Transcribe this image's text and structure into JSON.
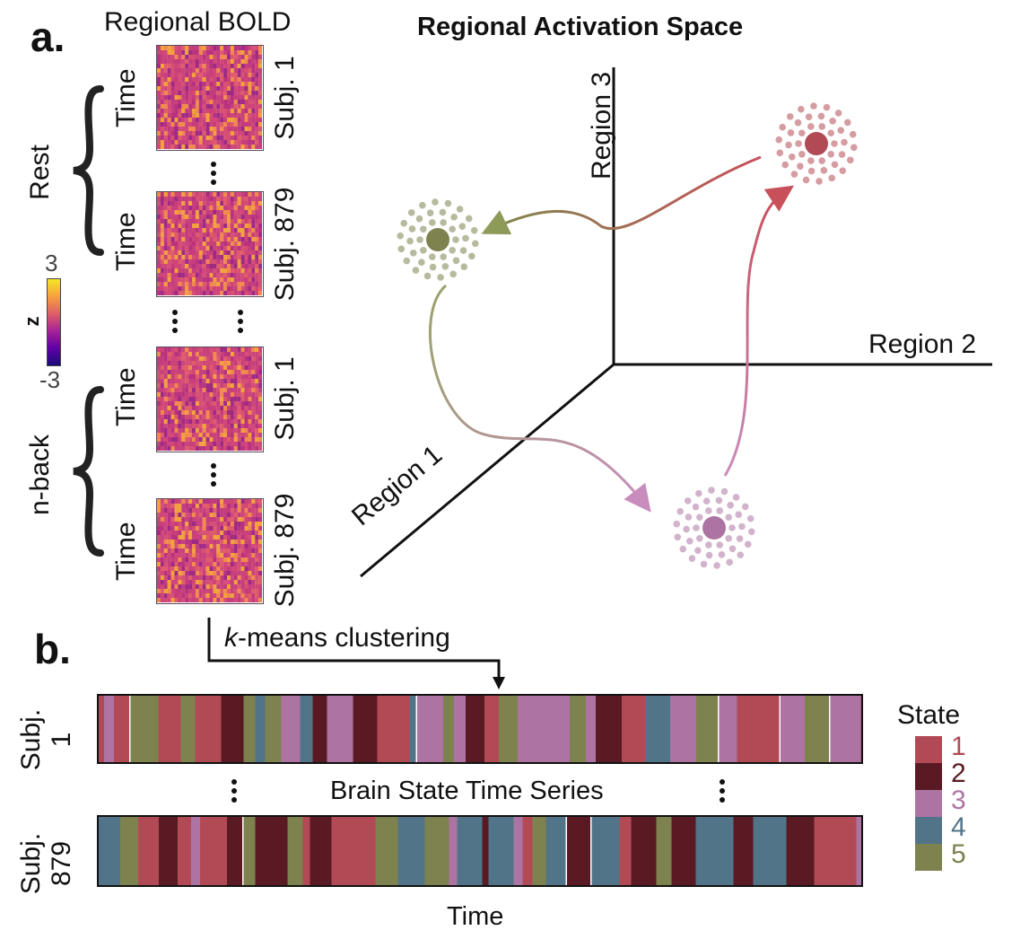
{
  "panel_a": {
    "letter": "a.",
    "bold_header": "Regional BOLD",
    "space_title": "Regional Activation Space",
    "rest_label": "Rest",
    "nback_label": "n-back",
    "time_label": "Time",
    "subj_labels": [
      "Subj. 1",
      "Subj. 879",
      "Subj. 1",
      "Subj. 879"
    ],
    "colorbar": {
      "label": "z",
      "max": "3",
      "min": "-3"
    },
    "axes": {
      "region1": "Region 1",
      "region2": "Region 2",
      "region3": "Region 3"
    }
  },
  "panel_b": {
    "letter": "b.",
    "kmeans_k": "k",
    "kmeans_rest": "-means clustering",
    "series_title": "Brain State Time Series",
    "time_axis": "Time",
    "subj1_line1": "Subj.",
    "subj1_line2": "1",
    "subj879_line1": "Subj.",
    "subj879_line2": "879"
  },
  "legend": {
    "title": "State",
    "states": [
      {
        "num": "1",
        "color": "#b24a55"
      },
      {
        "num": "2",
        "color": "#5a1a24"
      },
      {
        "num": "3",
        "color": "#ad74a3"
      },
      {
        "num": "4",
        "color": "#527489"
      },
      {
        "num": "5",
        "color": "#7d824e"
      }
    ]
  },
  "cluster_colors": {
    "state1": "#b24a55",
    "state3": "#ad74a3",
    "state5": "#7d824e"
  }
}
